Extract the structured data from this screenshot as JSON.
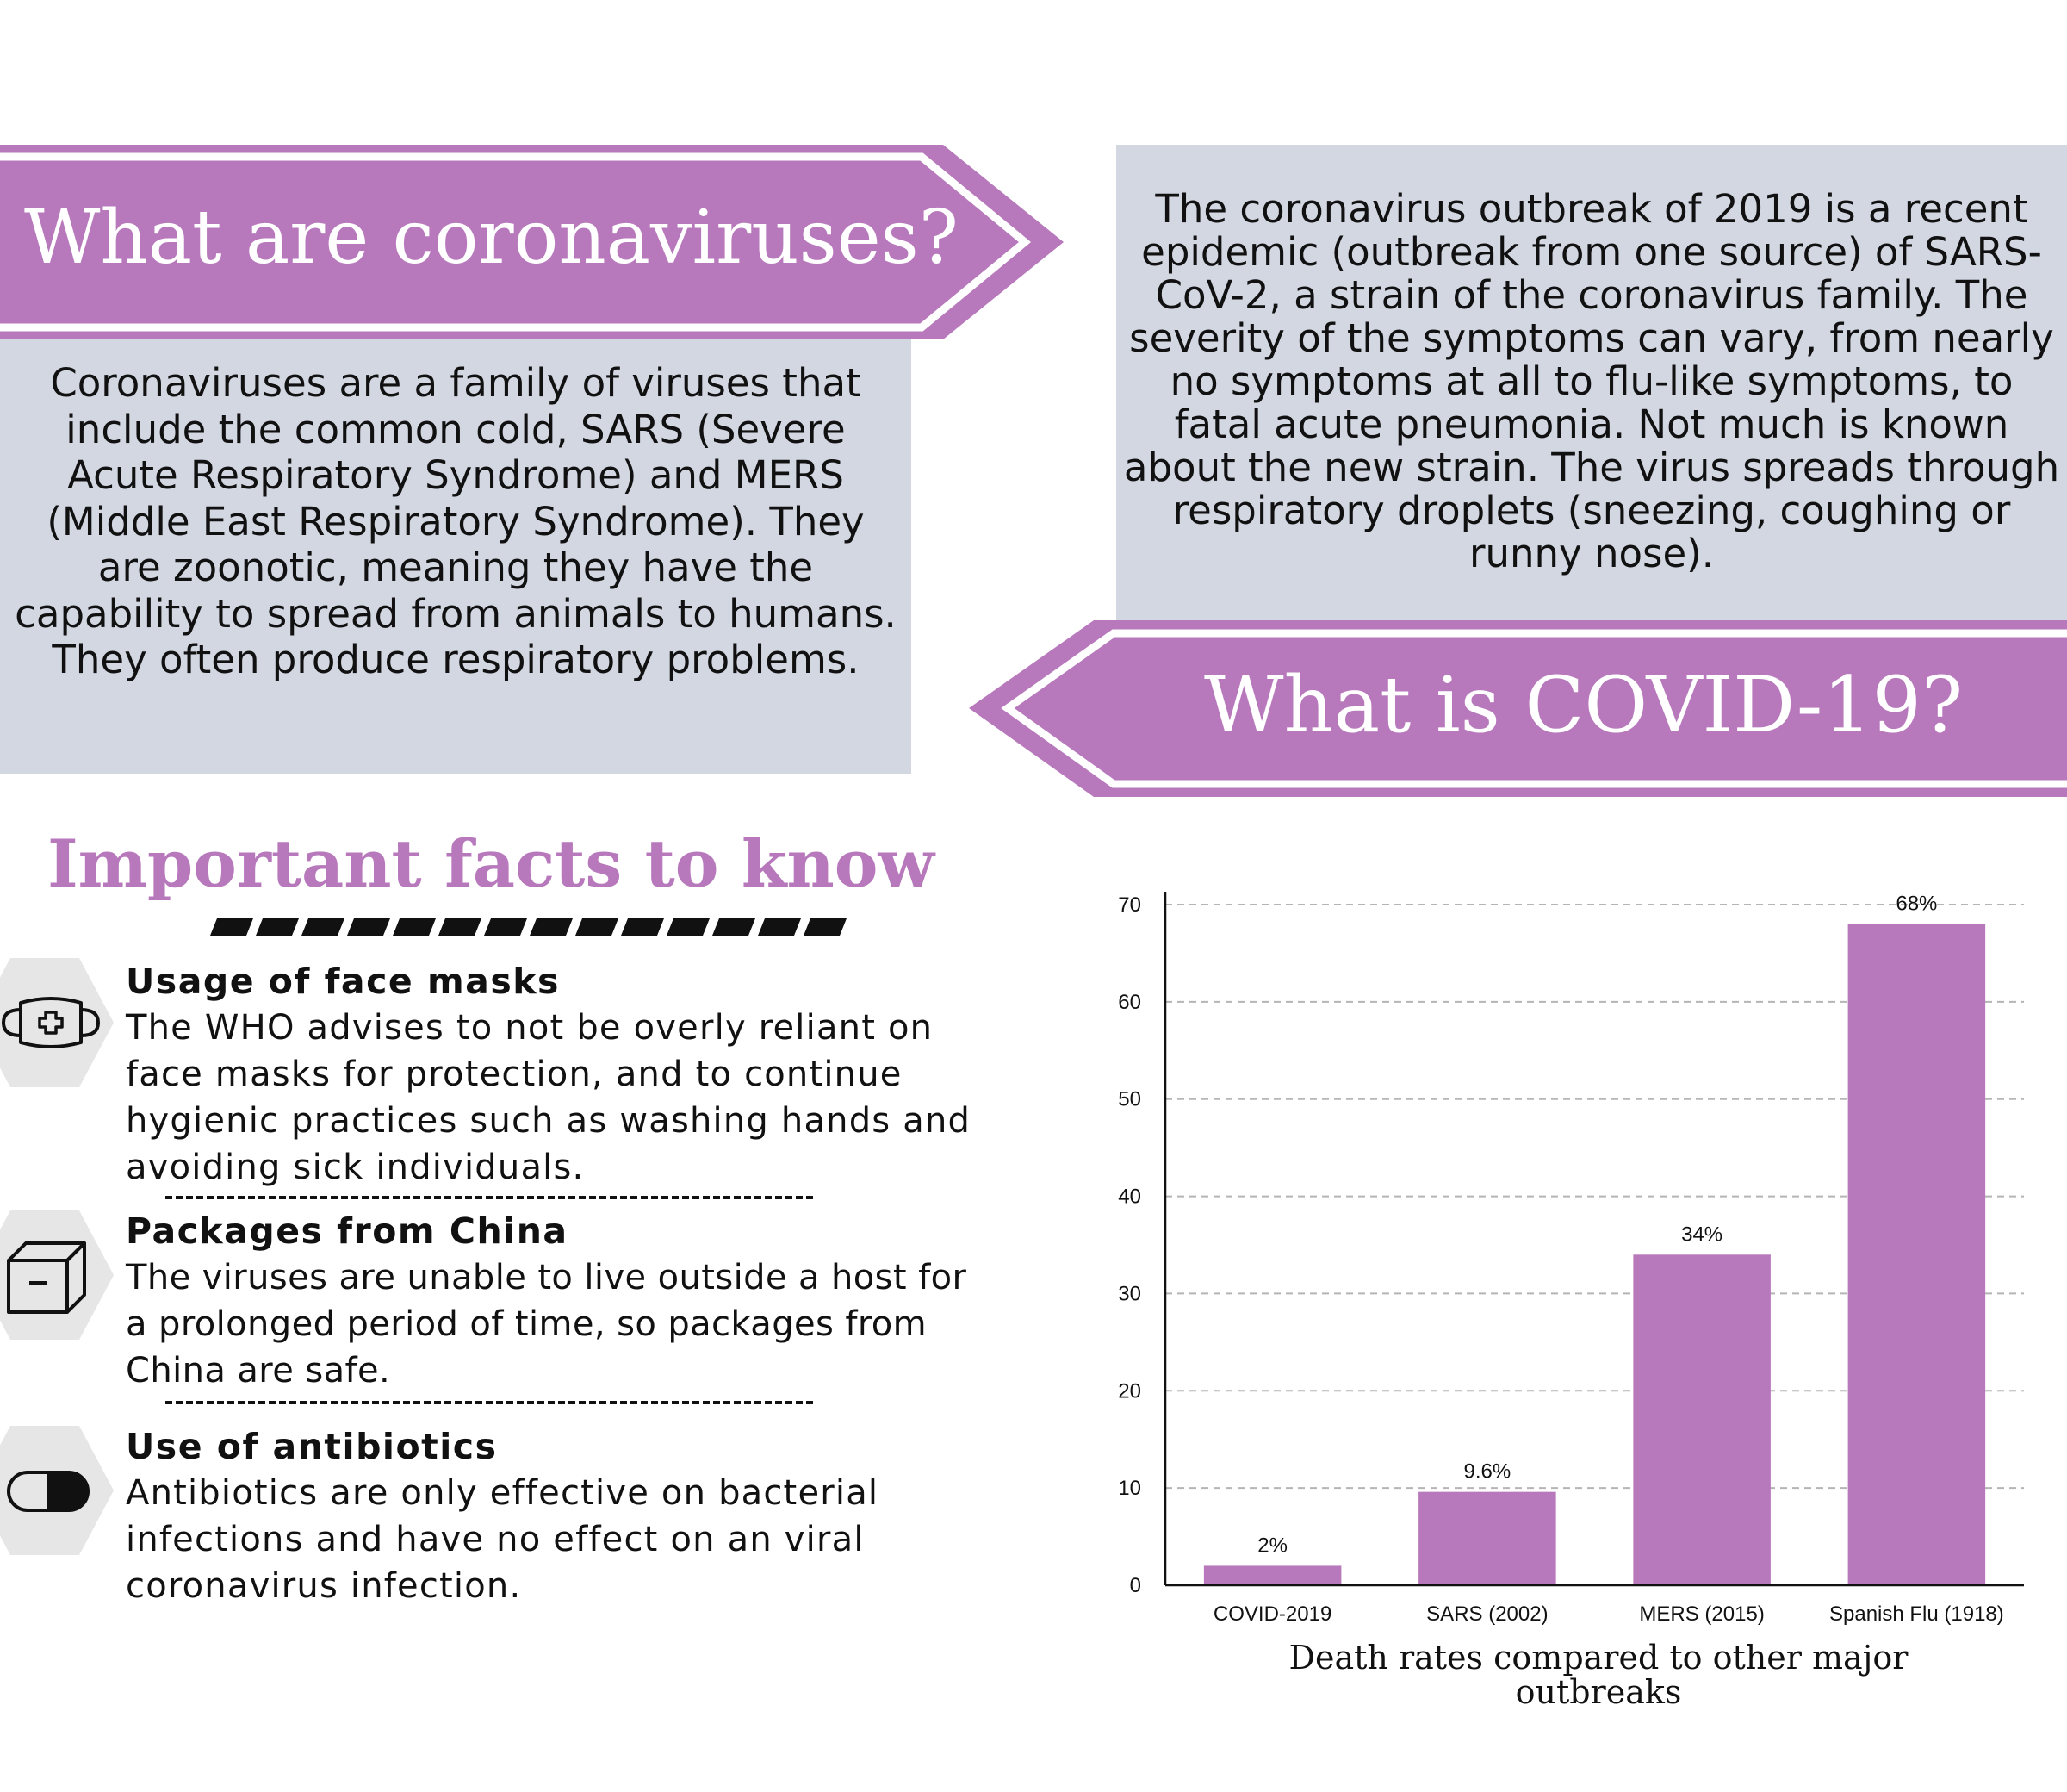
{
  "sections": {
    "coronaviruses": {
      "title": "What are coronaviruses?",
      "body": "Coronaviruses are a family of viruses that include the common cold, SARS (Severe Acute Respiratory Syndrome) and MERS (Middle East Respiratory Syndrome). They are zoonotic, meaning they have the capability to spread from animals to humans. They often produce respiratory problems."
    },
    "covid": {
      "title": "What is COVID-19?",
      "body": "The coronavirus outbreak of 2019 is a recent epidemic (outbreak from one source) of SARS-CoV-2, a strain of the coronavirus family. The severity of the symptoms can vary, from nearly no symptoms at all to flu-like symptoms, to fatal acute pneumonia. Not much is known about the new strain. The virus spreads through respiratory droplets (sneezing, coughing or runny nose)."
    }
  },
  "facts": {
    "title": "Important facts to know",
    "items": [
      {
        "icon": "face-mask-icon",
        "heading": "Usage of face masks",
        "body": "The WHO advises to not be overly reliant on face masks for protection, and to continue hygienic practices such as washing hands and avoiding sick individuals."
      },
      {
        "icon": "package-box-icon",
        "heading": "Packages from China",
        "body": "The viruses are unable to live outside a host for a prolonged period of time, so packages from China are safe."
      },
      {
        "icon": "capsule-pill-icon",
        "heading": "Use of antibiotics",
        "body": "Antibiotics are only effective on bacterial infections and have no effect on an viral coronavirus infection."
      }
    ]
  },
  "colors": {
    "accent": "#b779bc",
    "panel": "#d2d7e2",
    "hex": "#e6e6e6",
    "grid": "#b5b5b5"
  },
  "chart_data": {
    "type": "bar",
    "categories": [
      "COVID-2019",
      "SARS (2002)",
      "MERS (2015)",
      "Spanish Flu (1918)"
    ],
    "values": [
      2,
      9.6,
      34,
      68
    ],
    "data_labels": [
      "2%",
      "9.6%",
      "34%",
      "68%"
    ],
    "title": "Death rates compared to other major outbreaks",
    "xlabel": "",
    "ylabel": "",
    "ylim": [
      0,
      70
    ],
    "yticks": [
      0,
      10,
      20,
      30,
      40,
      50,
      60,
      70
    ],
    "ytick_labels": [
      "0",
      "10",
      "20",
      "30",
      "40",
      "50",
      "60",
      "70"
    ],
    "grid": true,
    "legend": "none",
    "color": "#b779bc"
  }
}
